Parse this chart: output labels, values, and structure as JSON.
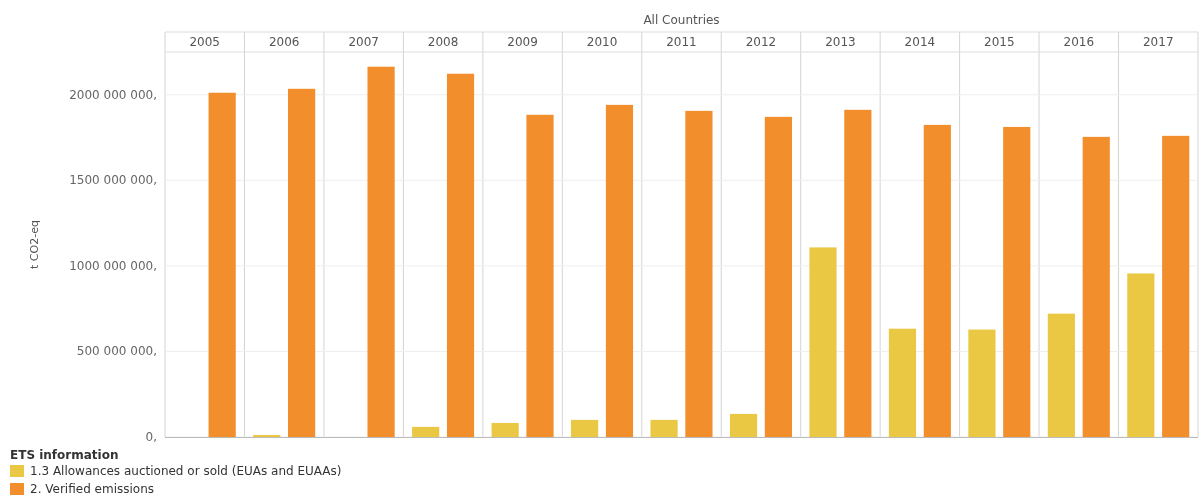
{
  "chart_data": {
    "type": "bar",
    "title": "All Countries",
    "ylabel": "t CO2-eq",
    "legend_title": "ETS information",
    "legend": "bottom",
    "grid": "y",
    "categories": [
      "2005",
      "2006",
      "2007",
      "2008",
      "2009",
      "2010",
      "2011",
      "2012",
      "2013",
      "2014",
      "2015",
      "2016",
      "2017"
    ],
    "series": [
      {
        "name": "1.3 Allowances auctioned or sold (EUAs and EUAAs)",
        "color": "#ebc844",
        "values": [
          null,
          12000000,
          null,
          59000000,
          82000000,
          100000000,
          100000000,
          135000000,
          1108000000,
          633000000,
          628000000,
          721000000,
          956000000
        ]
      },
      {
        "name": "2. Verified emissions",
        "color": "#f28e2b",
        "values": [
          2012000000,
          2035000000,
          2164000000,
          2123000000,
          1883000000,
          1941000000,
          1906000000,
          1871000000,
          1912000000,
          1824000000,
          1812000000,
          1754000000,
          1760000000
        ]
      }
    ],
    "ylim": [
      0,
      2250000000
    ],
    "yticks": [
      {
        "value": 0,
        "label": "0,"
      },
      {
        "value": 500000000,
        "label": "500 000 000,"
      },
      {
        "value": 1000000000,
        "label": "1000 000 000,"
      },
      {
        "value": 1500000000,
        "label": "1500 000 000,"
      },
      {
        "value": 2000000000,
        "label": "2000 000 000,"
      }
    ]
  }
}
